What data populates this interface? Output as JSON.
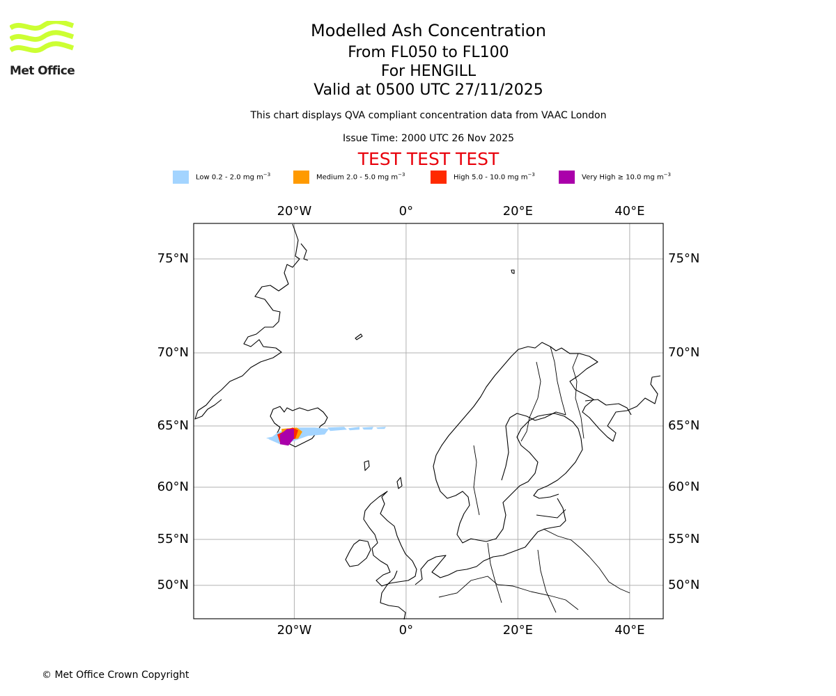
{
  "brand": {
    "name": "Met Office",
    "logo_color": "#ccff33"
  },
  "header": {
    "title": "Modelled Ash Concentration",
    "levels": "From FL050 to FL100",
    "volcano": "For HENGILL",
    "valid": "Valid at 0500 UTC 27/11/2025",
    "compliance_note": "This chart displays QVA compliant concentration data from VAAC London",
    "issue_time": "Issue Time: 2000 UTC 26 Nov 2025",
    "test_banner": "TEST TEST TEST",
    "test_color": "#e8000b"
  },
  "legend": [
    {
      "name": "Low",
      "range": "Low 0.2 - 2.0 mg m",
      "color": "#a3d4ff"
    },
    {
      "name": "Medium",
      "range": "Medium 2.0 - 5.0 mg m",
      "color": "#ff9a00"
    },
    {
      "name": "High",
      "range": "High 5.0 - 10.0 mg m",
      "color": "#ff2a00"
    },
    {
      "name": "Very High",
      "range": "Very High  ≥  10.0 mg m",
      "color": "#aa00aa"
    }
  ],
  "legend_unit_exponent": "−3",
  "map": {
    "extent": {
      "lon_min": -38,
      "lon_max": 46,
      "lat_min": 47,
      "lat_max": 77
    },
    "lon_ticks": [
      {
        "value": -20,
        "label": "20°W"
      },
      {
        "value": 0,
        "label": "0°"
      },
      {
        "value": 20,
        "label": "20°E"
      },
      {
        "value": 40,
        "label": "40°E"
      }
    ],
    "lat_ticks": [
      {
        "value": 75,
        "label": "75°N"
      },
      {
        "value": 70,
        "label": "70°N"
      },
      {
        "value": 65,
        "label": "65°N"
      },
      {
        "value": 60,
        "label": "60°N"
      },
      {
        "value": 55,
        "label": "55°N"
      },
      {
        "value": 50,
        "label": "50°N"
      }
    ],
    "source_location": {
      "name": "HENGILL",
      "lon": -21.3,
      "lat": 64.08
    }
  },
  "footer": {
    "copyright": "© Met Office Crown Copyright"
  }
}
